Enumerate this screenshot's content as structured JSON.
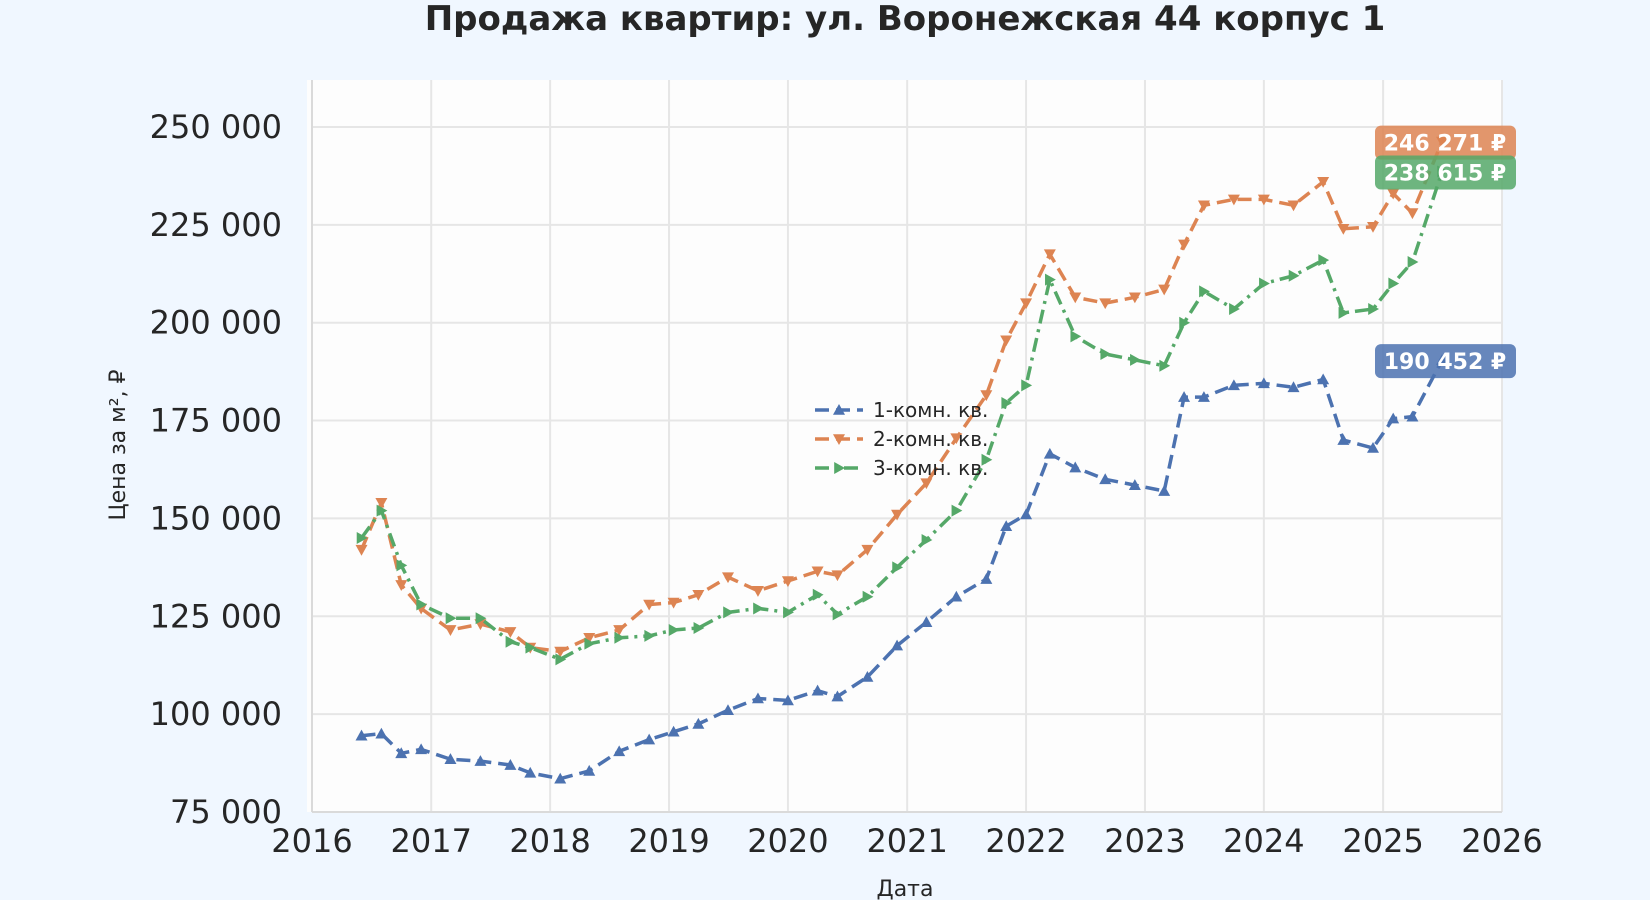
{
  "chart_data": {
    "type": "line",
    "title": "Продажа квартир: ул. Воронежская 44 корпус 1",
    "xlabel": "Дата",
    "ylabel": "Цена за м², ₽",
    "xlim": [
      "2016-01-01",
      "2026-01-01"
    ],
    "ylim": [
      75000,
      262000
    ],
    "x_ticks": [
      "2016",
      "2017",
      "2018",
      "2019",
      "2020",
      "2021",
      "2022",
      "2023",
      "2024",
      "2025",
      "2026"
    ],
    "y_ticks": [
      75000,
      100000,
      125000,
      150000,
      175000,
      200000,
      225000,
      250000
    ],
    "y_tick_labels": [
      "75 000",
      "100 000",
      "125 000",
      "150 000",
      "175 000",
      "200 000",
      "225 000",
      "250 000"
    ],
    "grid": true,
    "legend_position": "center",
    "series": [
      {
        "name": "1-комн. кв.",
        "color": "#4c72b0",
        "marker": "triangle-up",
        "dash": "dashed",
        "x": [
          "2016-06-01",
          "2016-08-01",
          "2016-10-01",
          "2016-12-01",
          "2017-03-01",
          "2017-06-01",
          "2017-09-01",
          "2017-11-01",
          "2018-02-01",
          "2018-05-01",
          "2018-08-01",
          "2018-11-01",
          "2019-01-15",
          "2019-04-01",
          "2019-07-01",
          "2019-10-01",
          "2020-01-01",
          "2020-04-01",
          "2020-06-01",
          "2020-09-01",
          "2020-12-01",
          "2021-03-01",
          "2021-06-01",
          "2021-09-01",
          "2021-11-01",
          "2022-01-01",
          "2022-03-15",
          "2022-06-01",
          "2022-09-01",
          "2022-12-01",
          "2023-03-01",
          "2023-05-01",
          "2023-07-01",
          "2023-10-01",
          "2024-01-01",
          "2024-04-01",
          "2024-07-01",
          "2024-09-01",
          "2024-12-01",
          "2025-02-01",
          "2025-04-01",
          "2025-07-01"
        ],
        "values": [
          94500,
          95000,
          90000,
          91000,
          88500,
          88000,
          87000,
          85000,
          83500,
          85500,
          90500,
          93500,
          95500,
          97500,
          101000,
          104000,
          103500,
          106000,
          104500,
          109500,
          117500,
          123500,
          130000,
          134500,
          148000,
          151000,
          166500,
          163000,
          160000,
          158500,
          157000,
          181000,
          181000,
          184000,
          184500,
          183500,
          185500,
          170000,
          168000,
          175500,
          176000,
          190452
        ]
      },
      {
        "name": "2-комн. кв.",
        "color": "#dd8452",
        "marker": "triangle-down",
        "dash": "dashed",
        "x": [
          "2016-06-01",
          "2016-08-01",
          "2016-10-01",
          "2016-12-01",
          "2017-03-01",
          "2017-06-01",
          "2017-09-01",
          "2017-11-01",
          "2018-02-01",
          "2018-05-01",
          "2018-08-01",
          "2018-11-01",
          "2019-01-15",
          "2019-04-01",
          "2019-07-01",
          "2019-10-01",
          "2020-01-01",
          "2020-04-01",
          "2020-06-01",
          "2020-09-01",
          "2020-12-01",
          "2021-03-01",
          "2021-06-01",
          "2021-09-01",
          "2021-11-01",
          "2022-01-01",
          "2022-03-15",
          "2022-06-01",
          "2022-09-01",
          "2022-12-01",
          "2023-03-01",
          "2023-05-01",
          "2023-07-01",
          "2023-10-01",
          "2024-01-01",
          "2024-04-01",
          "2024-07-01",
          "2024-09-01",
          "2024-12-01",
          "2025-02-01",
          "2025-04-01",
          "2025-07-01"
        ],
        "values": [
          142000,
          154000,
          133000,
          127000,
          121500,
          123000,
          121000,
          117000,
          116000,
          119500,
          121500,
          128000,
          128500,
          130500,
          135000,
          131500,
          134000,
          136500,
          135500,
          142000,
          151000,
          159000,
          170500,
          181500,
          195500,
          205000,
          217500,
          206500,
          205000,
          206500,
          208500,
          220000,
          230000,
          231500,
          231500,
          230000,
          236000,
          224000,
          224500,
          233000,
          228000,
          246271
        ]
      },
      {
        "name": "3-комн. кв.",
        "color": "#55a868",
        "marker": "triangle-right",
        "dash": "dashdot",
        "x": [
          "2016-06-01",
          "2016-08-01",
          "2016-10-01",
          "2016-12-01",
          "2017-03-01",
          "2017-06-01",
          "2017-09-01",
          "2017-11-01",
          "2018-02-01",
          "2018-05-01",
          "2018-08-01",
          "2018-11-01",
          "2019-01-15",
          "2019-04-01",
          "2019-07-01",
          "2019-10-01",
          "2020-01-01",
          "2020-04-01",
          "2020-06-01",
          "2020-09-01",
          "2020-12-01",
          "2021-03-01",
          "2021-06-01",
          "2021-09-01",
          "2021-11-01",
          "2022-01-01",
          "2022-03-15",
          "2022-06-01",
          "2022-09-01",
          "2022-12-01",
          "2023-03-01",
          "2023-05-01",
          "2023-07-01",
          "2023-10-01",
          "2024-01-01",
          "2024-04-01",
          "2024-07-01",
          "2024-09-01",
          "2024-12-01",
          "2025-02-01",
          "2025-04-01",
          "2025-07-01"
        ],
        "values": [
          145000,
          152000,
          138000,
          128000,
          124500,
          124500,
          118500,
          117000,
          114000,
          118000,
          119500,
          120000,
          121500,
          122000,
          126000,
          127000,
          126000,
          130500,
          125500,
          130000,
          137500,
          144500,
          152000,
          165000,
          179500,
          184000,
          211000,
          196500,
          192000,
          190500,
          189000,
          200000,
          208000,
          203500,
          210000,
          212000,
          216000,
          202500,
          203500,
          210000,
          215500,
          238615
        ]
      }
    ],
    "end_labels": [
      {
        "series": "2-комн. кв.",
        "text": "246 271 ₽",
        "color": "#dd8452",
        "value": 246271
      },
      {
        "series": "3-комн. кв.",
        "text": "238 615 ₽",
        "color": "#55a868",
        "value": 238615
      },
      {
        "series": "1-комн. кв.",
        "text": "190 452 ₽",
        "color": "#4c72b0",
        "value": 190452
      }
    ]
  }
}
